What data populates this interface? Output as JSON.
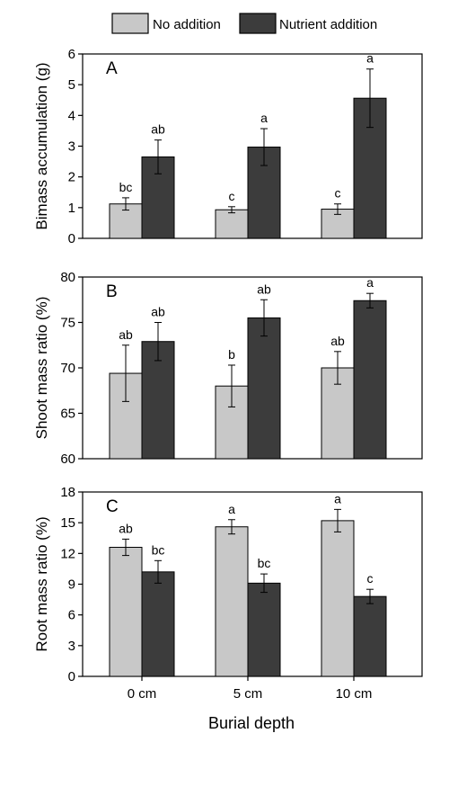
{
  "legend": {
    "items": [
      {
        "label": "No addition",
        "color": "#c8c8c8"
      },
      {
        "label": "Nutrient addition",
        "color": "#3c3c3c"
      }
    ]
  },
  "xlabel": "Burial depth",
  "chart_data": [
    {
      "type": "bar",
      "panel_label": "A",
      "ylabel": "Bimass accumulation (g)",
      "ylim": [
        0,
        6
      ],
      "yticks": [
        0,
        1,
        2,
        3,
        4,
        5,
        6
      ],
      "categories": [
        "0 cm",
        "5 cm",
        "10 cm"
      ],
      "series": [
        {
          "name": "No addition",
          "color": "#c8c8c8",
          "values": [
            1.12,
            0.93,
            0.95
          ],
          "errors": [
            0.2,
            0.1,
            0.17
          ],
          "labels": [
            "bc",
            "c",
            "c"
          ]
        },
        {
          "name": "Nutrient addition",
          "color": "#3c3c3c",
          "values": [
            2.65,
            2.97,
            4.56
          ],
          "errors": [
            0.55,
            0.6,
            0.95
          ],
          "labels": [
            "ab",
            "a",
            "a"
          ]
        }
      ]
    },
    {
      "type": "bar",
      "panel_label": "B",
      "ylabel": "Shoot mass ratio (%)",
      "ylim": [
        60,
        80
      ],
      "yticks": [
        60,
        65,
        70,
        75,
        80
      ],
      "categories": [
        "0 cm",
        "5 cm",
        "10 cm"
      ],
      "series": [
        {
          "name": "No addition",
          "color": "#c8c8c8",
          "values": [
            69.4,
            68.0,
            70.0
          ],
          "errors": [
            3.1,
            2.3,
            1.8
          ],
          "labels": [
            "ab",
            "b",
            "ab"
          ]
        },
        {
          "name": "Nutrient addition",
          "color": "#3c3c3c",
          "values": [
            72.9,
            75.5,
            77.4
          ],
          "errors": [
            2.1,
            2.0,
            0.8
          ],
          "labels": [
            "ab",
            "ab",
            "a"
          ]
        }
      ]
    },
    {
      "type": "bar",
      "panel_label": "C",
      "ylabel": "Root mass ratio (%)",
      "ylim": [
        0,
        18
      ],
      "yticks": [
        0,
        3,
        6,
        9,
        12,
        15,
        18
      ],
      "categories": [
        "0 cm",
        "5 cm",
        "10 cm"
      ],
      "series": [
        {
          "name": "No addition",
          "color": "#c8c8c8",
          "values": [
            12.6,
            14.6,
            15.2
          ],
          "errors": [
            0.8,
            0.7,
            1.1
          ],
          "labels": [
            "ab",
            "a",
            "a"
          ]
        },
        {
          "name": "Nutrient addition",
          "color": "#3c3c3c",
          "values": [
            10.2,
            9.1,
            7.8
          ],
          "errors": [
            1.1,
            0.9,
            0.7
          ],
          "labels": [
            "bc",
            "bc",
            "c"
          ]
        }
      ]
    }
  ]
}
